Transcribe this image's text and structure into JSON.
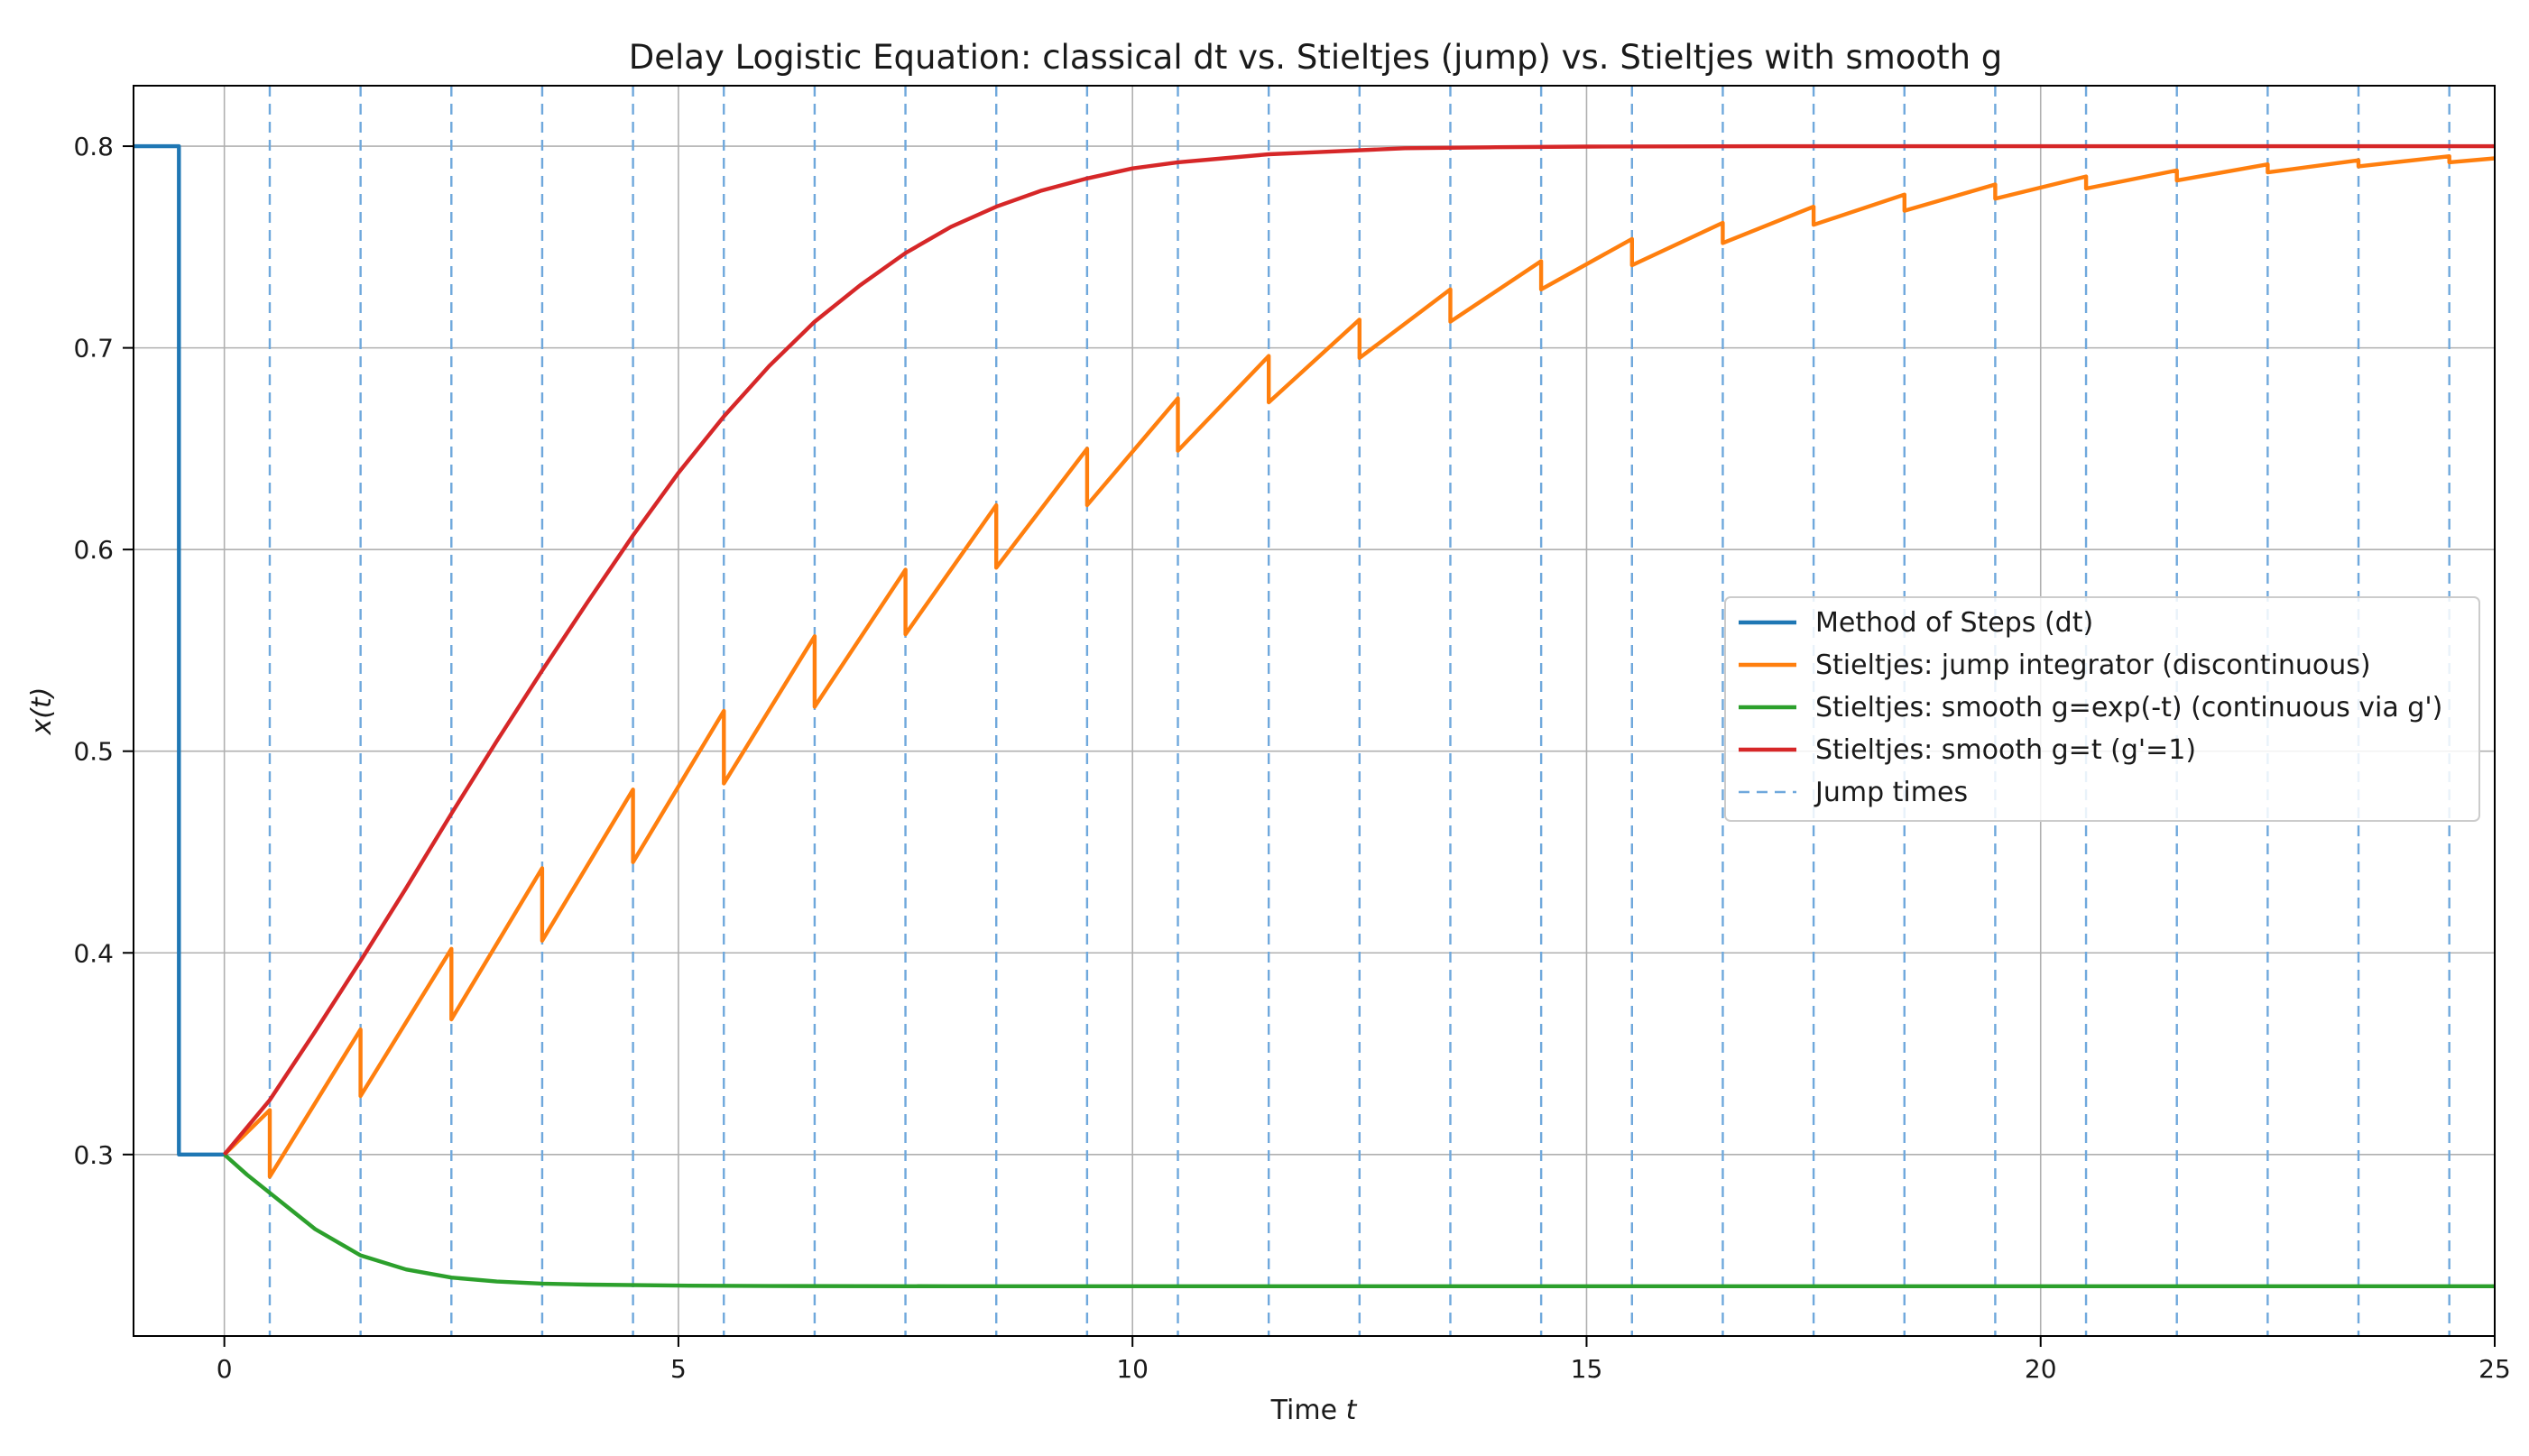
{
  "chart_data": {
    "type": "line",
    "title": "Delay Logistic Equation: classical dt vs. Stieltjes (jump) vs. Stieltjes with smooth g",
    "xlabel": "Time t",
    "xlabel_plain": "Time ",
    "xlabel_italic": "t",
    "ylabel": "x(t)",
    "xlim": [
      -1,
      25
    ],
    "ylim": [
      0.21,
      0.83
    ],
    "xticks": [
      0,
      5,
      10,
      15,
      20,
      25
    ],
    "xtick_labels": [
      "0",
      "5",
      "10",
      "15",
      "20",
      "25"
    ],
    "yticks": [
      0.3,
      0.4,
      0.5,
      0.6,
      0.7,
      0.8
    ],
    "ytick_labels": [
      "0.3",
      "0.4",
      "0.5",
      "0.6",
      "0.7",
      "0.8"
    ],
    "grid": true,
    "legend_position": "center-right",
    "jump_times": [
      0.5,
      1.5,
      2.5,
      3.5,
      4.5,
      5.5,
      6.5,
      7.5,
      8.5,
      9.5,
      10.5,
      11.5,
      12.5,
      13.5,
      14.5,
      15.5,
      16.5,
      17.5,
      18.5,
      19.5,
      20.5,
      21.5,
      22.5,
      23.5,
      24.5
    ],
    "series": [
      {
        "name": "Method of Steps (dt)",
        "color": "#1f77b4",
        "style": "solid",
        "x": [
          -1,
          -0.5,
          -0.5,
          0
        ],
        "y": [
          0.8,
          0.8,
          0.3,
          0.3
        ]
      },
      {
        "name": "Stieltjes: jump integrator (discontinuous)",
        "color": "#ff7f0e",
        "style": "solid",
        "x": [
          0,
          0.5,
          0.5,
          1.5,
          1.5,
          2.5,
          2.5,
          3.5,
          3.5,
          4.5,
          4.5,
          5.5,
          5.5,
          6.5,
          6.5,
          7.5,
          7.5,
          8.5,
          8.5,
          9.5,
          9.5,
          10.5,
          10.5,
          11.5,
          11.5,
          12.5,
          12.5,
          13.5,
          13.5,
          14.5,
          14.5,
          15.5,
          15.5,
          16.5,
          16.5,
          17.5,
          17.5,
          18.5,
          18.5,
          19.5,
          19.5,
          20.5,
          20.5,
          21.5,
          21.5,
          22.5,
          22.5,
          23.5,
          23.5,
          24.5,
          24.5,
          25
        ],
        "y": [
          0.3,
          0.322,
          0.289,
          0.362,
          0.329,
          0.402,
          0.367,
          0.442,
          0.406,
          0.481,
          0.445,
          0.52,
          0.484,
          0.557,
          0.522,
          0.59,
          0.558,
          0.622,
          0.591,
          0.65,
          0.622,
          0.675,
          0.649,
          0.696,
          0.673,
          0.714,
          0.695,
          0.729,
          0.713,
          0.743,
          0.729,
          0.754,
          0.741,
          0.762,
          0.752,
          0.77,
          0.761,
          0.776,
          0.768,
          0.781,
          0.774,
          0.785,
          0.779,
          0.788,
          0.783,
          0.791,
          0.787,
          0.793,
          0.79,
          0.795,
          0.792,
          0.794
        ]
      },
      {
        "name": "Stieltjes: smooth g=exp(-t) (continuous via g')",
        "color": "#2ca02c",
        "style": "solid",
        "x": [
          0,
          0.25,
          0.5,
          0.75,
          1,
          1.5,
          2,
          2.5,
          3,
          3.5,
          4,
          5,
          6,
          8,
          10,
          15,
          20,
          25
        ],
        "y": [
          0.3,
          0.29,
          0.281,
          0.272,
          0.263,
          0.25,
          0.243,
          0.239,
          0.237,
          0.236,
          0.2355,
          0.235,
          0.2348,
          0.2347,
          0.2347,
          0.2347,
          0.2347,
          0.2347
        ]
      },
      {
        "name": "Stieltjes: smooth g=t (g'=1)",
        "color": "#d62728",
        "style": "solid",
        "x": [
          0,
          0.5,
          1,
          1.5,
          2,
          2.5,
          3,
          3.5,
          4,
          4.5,
          5,
          5.5,
          6,
          6.5,
          7,
          7.5,
          8,
          8.5,
          9,
          9.5,
          10,
          10.5,
          11,
          11.5,
          12,
          13,
          14,
          15,
          17,
          20,
          25
        ],
        "y": [
          0.3,
          0.327,
          0.361,
          0.396,
          0.432,
          0.469,
          0.505,
          0.54,
          0.574,
          0.607,
          0.638,
          0.666,
          0.691,
          0.713,
          0.731,
          0.747,
          0.76,
          0.77,
          0.778,
          0.784,
          0.789,
          0.792,
          0.794,
          0.796,
          0.797,
          0.799,
          0.7995,
          0.7998,
          0.8,
          0.8,
          0.8
        ]
      }
    ],
    "jump_legend": {
      "name": "Jump times",
      "color": "#6fa8dc",
      "style": "dashed"
    }
  }
}
